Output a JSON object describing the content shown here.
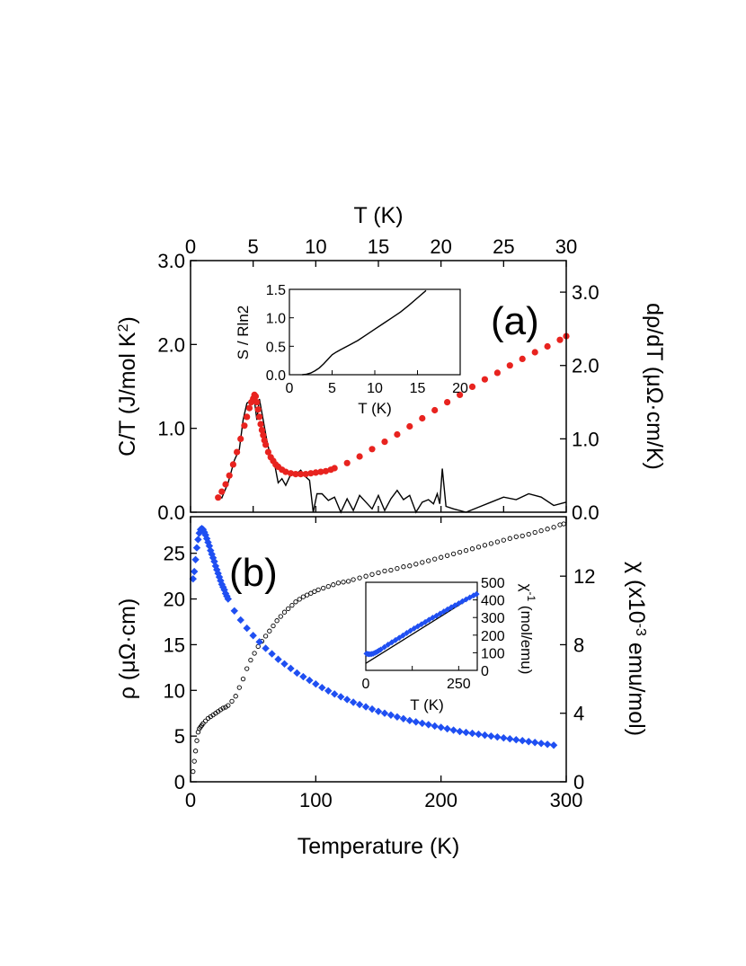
{
  "colors": {
    "specific_heat": "#000000",
    "drho_dT": "#e8231f",
    "resistivity": "#1f4ff2",
    "susceptibility": "#000000"
  },
  "chart_data": [
    {
      "id": "panel-a",
      "type": "line",
      "panel_label": "(a)",
      "xlabel": "T (K)",
      "xlim": [
        0,
        30
      ],
      "xticks": [
        0,
        5,
        10,
        15,
        20,
        25,
        30
      ],
      "ylabel": "C/T (J/mol K²)",
      "ylim": [
        0,
        3.0
      ],
      "yticks": [
        "0.0",
        "1.0",
        "2.0",
        "3.0"
      ],
      "y2label": "dρ/dT (μΩ·cm/K)",
      "y2lim": [
        0,
        3.43
      ],
      "y2ticks": [
        "0.0",
        "1.0",
        "2.0",
        "3.0"
      ],
      "series": [
        {
          "key": "specific_heat",
          "axis": "left",
          "style": "line",
          "x": [
            2.0,
            2.2,
            2.5,
            3.0,
            3.5,
            3.9,
            4.2,
            4.5,
            4.7,
            4.9,
            5.1,
            5.3,
            5.5,
            5.8,
            6.1,
            6.4,
            6.7,
            7.0,
            7.3,
            7.6,
            8.0,
            8.4,
            8.8,
            9.2,
            9.5,
            9.8,
            10.1,
            10.5,
            11.0,
            11.5,
            12.0,
            12.5,
            13.0,
            13.5,
            14.0,
            14.5,
            15.0,
            15.5,
            16.0,
            16.5,
            17.0,
            17.5,
            18.0,
            18.5,
            19.0,
            19.4,
            19.7,
            19.9,
            20.1,
            20.4,
            21.0,
            22.0,
            23.0,
            24.0,
            25.0,
            26.0,
            27.0,
            28.0,
            29.0,
            30.0
          ],
          "y": [
            0.17,
            0.2,
            0.17,
            0.35,
            0.62,
            0.75,
            1.1,
            1.3,
            1.32,
            1.3,
            1.33,
            1.1,
            1.35,
            1.1,
            0.85,
            0.65,
            0.58,
            0.35,
            0.4,
            0.32,
            0.45,
            0.45,
            0.5,
            0.42,
            0.38,
            0.0,
            0.22,
            0.22,
            0.14,
            0.18,
            0.0,
            0.16,
            0.02,
            0.2,
            0.12,
            0.04,
            0.2,
            0.02,
            0.16,
            0.26,
            0.15,
            0.2,
            0.0,
            0.12,
            0.15,
            0.1,
            0.22,
            0.1,
            0.52,
            0.07,
            0.04,
            0.0,
            0.06,
            0.12,
            0.18,
            0.15,
            0.22,
            0.18,
            0.08,
            0.12
          ]
        },
        {
          "key": "drho_dT",
          "axis": "right",
          "style": "dots",
          "x": [
            2.2,
            2.5,
            2.8,
            3.1,
            3.4,
            3.7,
            4.0,
            4.3,
            4.5,
            4.7,
            4.85,
            5.0,
            5.1,
            5.2,
            5.3,
            5.4,
            5.5,
            5.6,
            5.7,
            5.8,
            5.9,
            6.0,
            6.2,
            6.4,
            6.6,
            6.8,
            7.0,
            7.3,
            7.6,
            8.0,
            8.4,
            8.8,
            9.2,
            9.6,
            10.0,
            10.4,
            10.8,
            11.2,
            11.5,
            12.5,
            13.5,
            14.5,
            15.5,
            16.5,
            17.5,
            18.5,
            19.5,
            20.5,
            21.5,
            22.5,
            23.5,
            24.5,
            25.5,
            26.5,
            27.5,
            28.5,
            29.5,
            30.0
          ],
          "y": [
            0.2,
            0.28,
            0.38,
            0.5,
            0.65,
            0.82,
            1.0,
            1.18,
            1.3,
            1.42,
            1.5,
            1.55,
            1.6,
            1.58,
            1.5,
            1.4,
            1.3,
            1.2,
            1.12,
            1.05,
            0.98,
            0.92,
            0.82,
            0.75,
            0.7,
            0.65,
            0.62,
            0.58,
            0.55,
            0.53,
            0.52,
            0.52,
            0.52,
            0.53,
            0.54,
            0.55,
            0.56,
            0.58,
            0.6,
            0.67,
            0.76,
            0.86,
            0.96,
            1.06,
            1.17,
            1.28,
            1.39,
            1.5,
            1.6,
            1.71,
            1.81,
            1.9,
            2.0,
            2.09,
            2.18,
            2.26,
            2.35,
            2.4
          ]
        }
      ],
      "inset": {
        "xlabel": "T (K)",
        "ylabel": "S / Rln2",
        "xlim": [
          0,
          20
        ],
        "ylim": [
          0,
          1.5
        ],
        "xticks": [
          "0",
          "5",
          "10",
          "15",
          "20"
        ],
        "yticks": [
          "0.0",
          "0.5",
          "1.0",
          "1.5"
        ],
        "series": [
          {
            "key": "entropy",
            "style": "line",
            "x": [
              1.5,
              2.0,
              2.5,
              3.0,
              3.5,
              4.0,
              4.5,
              5.0,
              5.5,
              6.0,
              7.0,
              8.0,
              9.0,
              10.0,
              11.0,
              12.0,
              13.0,
              14.0,
              15.0,
              16.0
            ],
            "y": [
              0.0,
              0.01,
              0.03,
              0.07,
              0.12,
              0.19,
              0.27,
              0.35,
              0.4,
              0.44,
              0.52,
              0.6,
              0.7,
              0.8,
              0.9,
              1.0,
              1.1,
              1.22,
              1.35,
              1.48
            ]
          }
        ]
      }
    },
    {
      "id": "panel-b",
      "type": "scatter",
      "panel_label": "(b)",
      "xlabel": "Temperature (K)",
      "xlim": [
        0,
        300
      ],
      "xticks": [
        "0",
        "100",
        "200",
        "300"
      ],
      "ylabel": "ρ (μΩ·cm)",
      "ylim": [
        0,
        29
      ],
      "yticks": [
        "0",
        "5",
        "10",
        "15",
        "20",
        "25"
      ],
      "y2label": "χ (x10⁻³ emu/mol)",
      "y2lim": [
        0,
        15.47
      ],
      "y2ticks": [
        "0",
        "4",
        "8",
        "12"
      ],
      "series": [
        {
          "key": "resistivity",
          "axis": "left",
          "style": "diamonds",
          "x": [
            2,
            3,
            4,
            5,
            6,
            7,
            8,
            9,
            10,
            11,
            12,
            13,
            14,
            15,
            16,
            17,
            18,
            19,
            20,
            21,
            22,
            23,
            24,
            25,
            26,
            27,
            28,
            29,
            30,
            35,
            40,
            45,
            50,
            55,
            60,
            65,
            70,
            75,
            80,
            85,
            90,
            95,
            100,
            105,
            110,
            115,
            120,
            125,
            130,
            135,
            140,
            145,
            150,
            155,
            160,
            165,
            170,
            175,
            180,
            185,
            190,
            195,
            200,
            205,
            210,
            215,
            220,
            225,
            230,
            235,
            240,
            245,
            250,
            255,
            260,
            265,
            270,
            275,
            280,
            285,
            290
          ],
          "y": [
            22.2,
            23.0,
            24.3,
            25.6,
            26.5,
            27.2,
            27.6,
            27.7,
            27.6,
            27.3,
            27.0,
            26.6,
            26.2,
            25.8,
            25.3,
            24.9,
            24.5,
            24.1,
            23.6,
            23.2,
            22.8,
            22.4,
            22.0,
            21.6,
            21.3,
            21.0,
            20.6,
            20.3,
            20.0,
            18.7,
            17.7,
            16.8,
            16.0,
            15.3,
            14.6,
            14.0,
            13.4,
            12.9,
            12.4,
            11.9,
            11.5,
            11.1,
            10.7,
            10.3,
            9.95,
            9.6,
            9.3,
            9.0,
            8.7,
            8.45,
            8.2,
            7.95,
            7.7,
            7.5,
            7.3,
            7.1,
            6.9,
            6.7,
            6.55,
            6.4,
            6.25,
            6.1,
            5.95,
            5.8,
            5.65,
            5.5,
            5.4,
            5.3,
            5.2,
            5.1,
            5.0,
            4.9,
            4.8,
            4.7,
            4.6,
            4.5,
            4.4,
            4.3,
            4.2,
            4.1,
            4.0
          ]
        },
        {
          "key": "susceptibility",
          "axis": "right",
          "style": "open-circles",
          "x": [
            2,
            3,
            4,
            5,
            6,
            7,
            8,
            9,
            10,
            12,
            14,
            16,
            18,
            20,
            22,
            24,
            26,
            28,
            30,
            33,
            36,
            39,
            42,
            45,
            48,
            51,
            54,
            57,
            60,
            63,
            66,
            69,
            72,
            75,
            78,
            81,
            84,
            87,
            90,
            93,
            96,
            99,
            102,
            106,
            110,
            114,
            118,
            122,
            126,
            130,
            135,
            140,
            145,
            150,
            155,
            160,
            165,
            170,
            175,
            180,
            185,
            190,
            195,
            200,
            205,
            210,
            215,
            220,
            225,
            230,
            235,
            240,
            245,
            250,
            255,
            260,
            265,
            270,
            275,
            280,
            285,
            290,
            295,
            298
          ],
          "y": [
            0.6,
            1.2,
            1.8,
            2.4,
            2.9,
            3.1,
            3.2,
            3.3,
            3.4,
            3.55,
            3.7,
            3.8,
            3.9,
            4.0,
            4.1,
            4.2,
            4.3,
            4.35,
            4.45,
            4.7,
            5.0,
            5.5,
            6.0,
            6.6,
            7.1,
            7.5,
            7.9,
            8.2,
            8.5,
            8.8,
            9.1,
            9.4,
            9.65,
            9.9,
            10.1,
            10.3,
            10.5,
            10.65,
            10.8,
            10.9,
            11.0,
            11.1,
            11.2,
            11.3,
            11.4,
            11.5,
            11.6,
            11.65,
            11.7,
            11.8,
            11.9,
            12.0,
            12.1,
            12.2,
            12.3,
            12.35,
            12.45,
            12.55,
            12.6,
            12.7,
            12.8,
            12.9,
            13.0,
            13.1,
            13.2,
            13.3,
            13.4,
            13.5,
            13.6,
            13.7,
            13.8,
            13.9,
            14.0,
            14.1,
            14.2,
            14.3,
            14.35,
            14.45,
            14.55,
            14.65,
            14.75,
            14.85,
            15.0,
            15.05
          ]
        }
      ],
      "inset": {
        "xlabel": "T (K)",
        "ylabel": "χ⁻¹ (mol/emu)",
        "xlim": [
          0,
          300
        ],
        "ylim": [
          0,
          500
        ],
        "xticks": [
          "0",
          "",
          "250"
        ],
        "yticks": [
          "0",
          "100",
          "200",
          "300",
          "400",
          "500"
        ],
        "series": [
          {
            "key": "inverse_susceptibility",
            "style": "diamonds",
            "x": [
              2,
              5,
              8,
              12,
              16,
              20,
              25,
              30,
              35,
              40,
              50,
              60,
              70,
              80,
              90,
              100,
              110,
              120,
              130,
              140,
              150,
              160,
              170,
              180,
              190,
              200,
              210,
              220,
              230,
              240,
              250,
              260,
              270,
              280,
              290,
              298
            ],
            "y": [
              95,
              93,
              92,
              92,
              93,
              95,
              100,
              105,
              112,
              118,
              132,
              146,
              159,
              172,
              185,
              198,
              212,
              225,
              238,
              250,
              262,
              274,
              287,
              299,
              310,
              322,
              334,
              346,
              358,
              369,
              380,
              392,
              403,
              414,
              425,
              433
            ]
          },
          {
            "key": "curie_weiss_fit",
            "style": "line",
            "x": [
              0,
              298
            ],
            "y": [
              40,
              433
            ]
          }
        ]
      }
    }
  ]
}
